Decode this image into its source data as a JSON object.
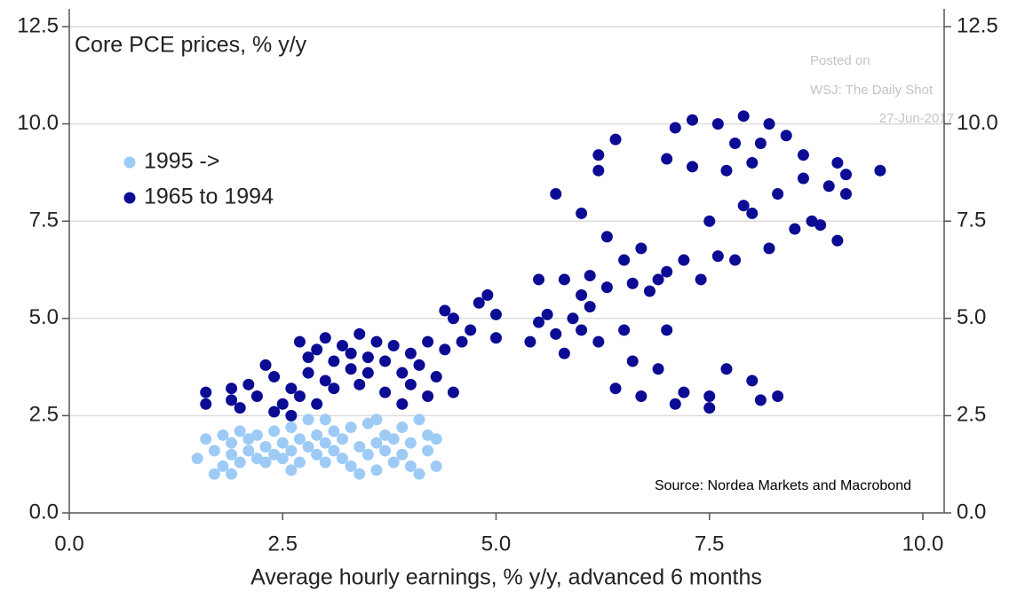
{
  "chart_data": {
    "type": "scatter",
    "title": "Core PCE prices, % y/y",
    "xlabel": "Average hourly earnings, % y/y, advanced 6 months",
    "source": "Source: Nordea Markets and Macrobond",
    "watermark": [
      "Posted on",
      "WSJ: The Daily Shot",
      "27-Jun-2017"
    ],
    "xlim": [
      0,
      10.25
    ],
    "ylim": [
      0,
      12.5
    ],
    "y2lim": [
      0,
      12.5
    ],
    "xticks": [
      {
        "value": 0,
        "label": "0.0"
      },
      2.5,
      {
        "value": 5,
        "label": "5.0"
      },
      7.5,
      {
        "value": 10,
        "label": "10.0"
      }
    ],
    "yticks": [
      {
        "value": 0,
        "label": "0.0"
      },
      2.5,
      {
        "value": 5,
        "label": "5.0"
      },
      7.5,
      {
        "value": 10,
        "label": "10.0"
      },
      12.5
    ],
    "y2ticks": [
      {
        "value": 0,
        "label": "0.0"
      },
      2.5,
      {
        "value": 5,
        "label": "5.0"
      },
      7.5,
      {
        "value": 10,
        "label": "10.0"
      },
      12.5
    ],
    "grid": true,
    "legend": "upper left",
    "series": [
      {
        "name": "1995 ->",
        "color": "#9dcbf6",
        "x": [
          1.5,
          1.6,
          1.7,
          1.7,
          1.8,
          1.8,
          1.9,
          1.9,
          2.0,
          2.0,
          2.1,
          2.1,
          2.2,
          2.2,
          2.3,
          2.3,
          2.4,
          2.4,
          2.5,
          2.5,
          2.6,
          2.6,
          2.7,
          2.7,
          2.8,
          2.8,
          2.9,
          2.9,
          3.0,
          3.0,
          3.1,
          3.1,
          3.2,
          3.2,
          3.3,
          3.3,
          3.4,
          3.4,
          3.5,
          3.5,
          3.6,
          3.6,
          3.7,
          3.7,
          3.8,
          3.8,
          3.9,
          3.9,
          4.0,
          4.0,
          4.1,
          4.1,
          4.2,
          4.2,
          4.3,
          4.3,
          1.9,
          2.6,
          3.0,
          3.6
        ],
        "values": [
          1.4,
          1.9,
          1.0,
          1.6,
          1.2,
          2.0,
          1.5,
          1.8,
          1.3,
          2.1,
          1.6,
          1.9,
          1.4,
          2.0,
          1.7,
          1.3,
          1.5,
          2.1,
          1.8,
          1.4,
          2.2,
          1.6,
          1.9,
          1.3,
          2.4,
          1.7,
          1.5,
          2.0,
          1.8,
          1.3,
          2.1,
          1.6,
          1.4,
          1.9,
          1.2,
          2.2,
          1.0,
          1.7,
          1.5,
          2.3,
          1.8,
          1.1,
          1.6,
          2.0,
          1.3,
          1.9,
          1.5,
          2.2,
          1.8,
          1.2,
          2.4,
          1.0,
          1.6,
          2.0,
          1.2,
          1.9,
          1.0,
          1.1,
          2.4,
          2.4
        ]
      },
      {
        "name": "1965 to 1994",
        "color": "#0b0b94",
        "x": [
          1.6,
          1.6,
          1.9,
          1.9,
          2.0,
          2.1,
          2.2,
          2.3,
          2.4,
          2.4,
          2.5,
          2.6,
          2.6,
          2.7,
          2.7,
          2.8,
          2.8,
          2.9,
          2.9,
          3.0,
          3.0,
          3.1,
          3.1,
          3.2,
          3.3,
          3.3,
          3.4,
          3.4,
          3.5,
          3.5,
          3.6,
          3.7,
          3.7,
          3.8,
          3.9,
          3.9,
          4.0,
          4.0,
          4.1,
          4.2,
          4.2,
          4.3,
          4.4,
          4.4,
          4.5,
          4.5,
          4.7,
          4.8,
          4.9,
          5.0,
          5.0,
          4.6,
          5.4,
          5.5,
          5.6,
          5.7,
          5.7,
          5.8,
          5.8,
          5.9,
          6.0,
          6.0,
          6.1,
          6.1,
          6.2,
          6.2,
          6.2,
          6.3,
          6.3,
          6.4,
          6.4,
          6.5,
          6.5,
          6.6,
          6.6,
          6.7,
          6.7,
          6.8,
          6.9,
          7.0,
          7.0,
          7.1,
          7.1,
          7.2,
          7.2,
          7.3,
          7.3,
          7.4,
          7.5,
          7.5,
          7.5,
          7.6,
          7.6,
          7.7,
          7.7,
          7.8,
          7.8,
          7.9,
          7.9,
          8.0,
          8.0,
          8.0,
          8.1,
          8.1,
          8.2,
          8.2,
          8.3,
          8.4,
          8.5,
          8.6,
          8.6,
          8.7,
          8.8,
          8.9,
          9.0,
          9.0,
          9.1,
          9.1,
          9.5,
          8.3,
          7.0,
          6.9,
          5.5,
          6.0
        ],
        "values": [
          3.1,
          2.8,
          3.2,
          2.9,
          2.7,
          3.3,
          3.0,
          3.8,
          3.5,
          2.6,
          2.8,
          3.2,
          2.5,
          4.4,
          3.0,
          4.0,
          3.6,
          2.8,
          4.2,
          3.4,
          4.5,
          3.9,
          3.2,
          4.3,
          3.7,
          4.1,
          4.6,
          3.3,
          4.0,
          3.6,
          4.4,
          3.9,
          3.1,
          4.3,
          3.6,
          2.8,
          4.1,
          3.3,
          3.8,
          4.4,
          3.0,
          3.5,
          5.2,
          4.2,
          3.1,
          5.0,
          4.7,
          5.4,
          5.6,
          4.5,
          5.1,
          4.4,
          4.4,
          6.0,
          5.1,
          4.6,
          8.2,
          6.0,
          4.1,
          5.0,
          7.7,
          4.7,
          6.1,
          5.3,
          9.2,
          8.8,
          4.4,
          5.8,
          7.1,
          9.6,
          3.2,
          6.5,
          4.7,
          3.9,
          5.9,
          6.8,
          3.0,
          5.7,
          3.7,
          6.2,
          9.1,
          2.8,
          9.9,
          3.1,
          6.5,
          10.1,
          8.9,
          6.0,
          2.7,
          7.5,
          3.0,
          10.0,
          6.6,
          8.8,
          3.7,
          9.5,
          6.5,
          7.9,
          10.2,
          9.0,
          3.4,
          7.7,
          9.5,
          2.9,
          6.8,
          10.0,
          8.2,
          9.7,
          7.3,
          8.6,
          9.2,
          7.5,
          7.4,
          8.4,
          9.0,
          7.0,
          8.7,
          8.2,
          8.8,
          3.0,
          4.7,
          6.0,
          4.9,
          5.6
        ]
      }
    ]
  }
}
